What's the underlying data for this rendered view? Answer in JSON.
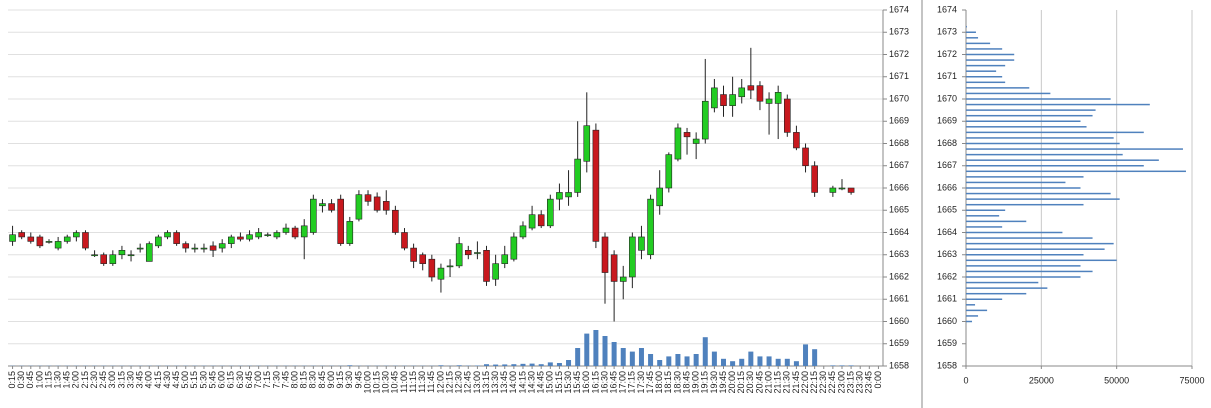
{
  "chart_data": [
    {
      "type": "candlestick",
      "categories": [
        "0:15",
        "0:30",
        "0:45",
        "1:00",
        "1:15",
        "1:30",
        "1:45",
        "2:00",
        "2:15",
        "2:30",
        "2:45",
        "3:00",
        "3:15",
        "3:30",
        "3:45",
        "4:00",
        "4:15",
        "4:30",
        "4:45",
        "5:00",
        "5:15",
        "5:30",
        "5:45",
        "6:00",
        "6:15",
        "6:30",
        "6:45",
        "7:00",
        "7:15",
        "7:30",
        "7:45",
        "8:00",
        "8:15",
        "8:30",
        "8:45",
        "9:00",
        "9:15",
        "9:30",
        "9:45",
        "10:00",
        "10:15",
        "10:30",
        "10:45",
        "11:00",
        "11:15",
        "11:30",
        "11:45",
        "12:00",
        "12:15",
        "12:30",
        "12:45",
        "13:00",
        "13:15",
        "13:30",
        "13:45",
        "14:00",
        "14:15",
        "14:30",
        "14:45",
        "15:00",
        "15:15",
        "15:30",
        "15:45",
        "16:00",
        "16:15",
        "16:30",
        "16:45",
        "17:00",
        "17:15",
        "17:30",
        "17:45",
        "18:00",
        "18:15",
        "18:30",
        "18:45",
        "19:00",
        "19:15",
        "19:30",
        "19:45",
        "20:00",
        "20:15",
        "20:30",
        "20:45",
        "21:00",
        "21:15",
        "21:30",
        "21:45",
        "22:00",
        "22:15",
        "22:30",
        "22:45",
        "23:00",
        "23:15",
        "23:30",
        "23:45",
        "0:00"
      ],
      "open": [
        1663.6,
        1664.0,
        1663.8,
        1663.8,
        1663.6,
        1663.3,
        1663.6,
        1663.8,
        1664.0,
        1663.0,
        1663.0,
        1662.6,
        1663.0,
        1663.0,
        1663.3,
        1662.7,
        1663.4,
        1663.8,
        1664.0,
        1663.5,
        1663.3,
        1663.3,
        1663.4,
        1663.3,
        1663.5,
        1663.8,
        1663.7,
        1663.8,
        1663.9,
        1663.8,
        1664.0,
        1664.2,
        1663.8,
        1664.0,
        1665.2,
        1665.3,
        1665.5,
        1663.5,
        1664.6,
        1665.7,
        1665.6,
        1665.4,
        1665.0,
        1664.0,
        1663.3,
        1663.0,
        1662.8,
        1661.9,
        1662.5,
        1662.5,
        1663.2,
        1663.1,
        1663.2,
        1661.9,
        1662.6,
        1662.8,
        1663.8,
        1664.2,
        1664.8,
        1664.3,
        1665.5,
        1665.6,
        1665.8,
        1667.2,
        1668.6,
        1663.8,
        1663.0,
        1661.8,
        1662.0,
        1663.2,
        1663.0,
        1665.2,
        1666.0,
        1667.3,
        1668.5,
        1668.0,
        1668.2,
        1669.6,
        1670.2,
        1669.7,
        1670.1,
        1670.6,
        1670.6,
        1669.8,
        1669.8,
        1670.0,
        1668.5,
        1667.8,
        1667.0,
        null,
        1665.8,
        1666.0,
        1666.0,
        null,
        null,
        null
      ],
      "high": [
        1664.3,
        1664.1,
        1664.0,
        1663.9,
        1663.7,
        1663.8,
        1663.9,
        1664.1,
        1664.1,
        1663.2,
        1663.1,
        1663.2,
        1663.4,
        1663.2,
        1663.5,
        1663.6,
        1663.9,
        1664.1,
        1664.1,
        1663.6,
        1663.5,
        1663.5,
        1663.6,
        1663.7,
        1663.9,
        1664.0,
        1664.1,
        1664.2,
        1664.0,
        1664.1,
        1664.4,
        1664.3,
        1664.6,
        1665.7,
        1665.5,
        1665.5,
        1665.7,
        1664.7,
        1665.9,
        1665.9,
        1665.8,
        1665.9,
        1665.2,
        1664.2,
        1663.5,
        1663.1,
        1663.0,
        1662.6,
        1662.8,
        1663.8,
        1663.4,
        1663.6,
        1663.4,
        1663.0,
        1663.4,
        1664.0,
        1664.5,
        1665.2,
        1665.0,
        1665.7,
        1666.2,
        1666.8,
        1669.0,
        1670.3,
        1668.9,
        1664.0,
        1663.2,
        1662.5,
        1664.0,
        1664.3,
        1665.7,
        1666.8,
        1667.6,
        1668.9,
        1668.7,
        1668.5,
        1671.8,
        1670.9,
        1670.6,
        1671.0,
        1670.9,
        1672.3,
        1670.8,
        1670.3,
        1670.6,
        1670.2,
        1668.8,
        1668.0,
        1667.2,
        null,
        1666.1,
        1666.4,
        1666.0,
        null,
        null,
        null
      ],
      "low": [
        1663.4,
        1663.7,
        1663.5,
        1663.3,
        1663.5,
        1663.2,
        1663.5,
        1663.6,
        1663.2,
        1662.9,
        1662.5,
        1662.5,
        1662.8,
        1662.7,
        1663.1,
        1662.7,
        1663.3,
        1663.7,
        1663.4,
        1663.1,
        1663.1,
        1663.1,
        1662.9,
        1663.1,
        1663.3,
        1663.6,
        1663.6,
        1663.7,
        1663.8,
        1663.7,
        1663.9,
        1663.7,
        1662.8,
        1663.9,
        1664.9,
        1664.9,
        1663.4,
        1663.4,
        1664.5,
        1665.2,
        1664.9,
        1664.8,
        1663.9,
        1663.2,
        1662.4,
        1662.3,
        1661.8,
        1661.3,
        1662.0,
        1662.4,
        1662.8,
        1662.8,
        1661.6,
        1661.6,
        1662.4,
        1662.7,
        1663.7,
        1664.1,
        1664.2,
        1664.2,
        1665.0,
        1665.2,
        1665.6,
        1666.7,
        1663.3,
        1660.8,
        1660.0,
        1661.0,
        1661.5,
        1662.8,
        1662.8,
        1664.8,
        1665.8,
        1667.2,
        1667.5,
        1667.3,
        1668.0,
        1669.4,
        1669.2,
        1669.2,
        1669.8,
        1670.0,
        1669.5,
        1668.4,
        1668.2,
        1668.3,
        1667.7,
        1666.7,
        1665.6,
        null,
        1665.6,
        1665.9,
        1665.7,
        null,
        null,
        null
      ],
      "close": [
        1663.9,
        1663.8,
        1663.6,
        1663.4,
        1663.6,
        1663.6,
        1663.8,
        1664.0,
        1663.3,
        1663.0,
        1662.6,
        1663.0,
        1663.2,
        1663.0,
        1663.3,
        1663.5,
        1663.8,
        1664.0,
        1663.5,
        1663.3,
        1663.3,
        1663.3,
        1663.2,
        1663.5,
        1663.8,
        1663.7,
        1663.9,
        1664.0,
        1663.9,
        1664.0,
        1664.2,
        1663.8,
        1664.3,
        1665.5,
        1665.3,
        1665.0,
        1663.5,
        1664.5,
        1665.7,
        1665.4,
        1665.0,
        1665.0,
        1664.0,
        1663.3,
        1662.7,
        1662.6,
        1662.0,
        1662.4,
        1662.5,
        1663.5,
        1663.0,
        1663.1,
        1661.8,
        1662.6,
        1663.0,
        1663.8,
        1664.3,
        1664.8,
        1664.3,
        1665.5,
        1665.8,
        1665.8,
        1667.3,
        1668.8,
        1663.6,
        1662.2,
        1661.8,
        1662.0,
        1663.8,
        1663.8,
        1665.5,
        1666.0,
        1667.5,
        1668.7,
        1668.3,
        1668.2,
        1669.9,
        1670.5,
        1669.7,
        1670.2,
        1670.5,
        1670.4,
        1669.9,
        1670.0,
        1670.3,
        1668.5,
        1667.8,
        1667.0,
        1665.8,
        null,
        1666.0,
        1666.0,
        1665.8,
        null,
        null,
        null
      ],
      "volume": [
        200,
        200,
        200,
        200,
        200,
        200,
        200,
        200,
        200,
        200,
        200,
        200,
        200,
        200,
        200,
        200,
        200,
        200,
        200,
        200,
        200,
        200,
        200,
        200,
        200,
        200,
        200,
        200,
        200,
        200,
        200,
        200,
        200,
        200,
        200,
        200,
        200,
        600,
        200,
        200,
        200,
        200,
        200,
        200,
        200,
        200,
        200,
        600,
        200,
        600,
        300,
        400,
        1500,
        1200,
        1300,
        1500,
        1800,
        2000,
        1500,
        3000,
        2500,
        5000,
        15000,
        27000,
        30000,
        25000,
        20000,
        15000,
        12000,
        15000,
        10000,
        5000,
        8000,
        10000,
        8000,
        10000,
        24000,
        12000,
        6000,
        4000,
        6000,
        12000,
        8000,
        8000,
        6000,
        6000,
        4000,
        18000,
        14000,
        null,
        500,
        500,
        500,
        null,
        null,
        null
      ],
      "up_color": "#22cc22",
      "down_color": "#c8181e",
      "volume_color": "#4f81bd",
      "ylim": [
        1658,
        1674
      ],
      "yticks": [
        1658,
        1659,
        1660,
        1661,
        1662,
        1663,
        1664,
        1665,
        1666,
        1667,
        1668,
        1669,
        1670,
        1671,
        1672,
        1673,
        1674
      ],
      "grid": true
    },
    {
      "type": "hbar",
      "y": [
        1673.25,
        1673,
        1672.75,
        1672.5,
        1672.25,
        1672,
        1671.75,
        1671.5,
        1671.25,
        1671,
        1670.75,
        1670.5,
        1670.25,
        1670,
        1669.75,
        1669.5,
        1669.25,
        1669,
        1668.75,
        1668.5,
        1668.25,
        1668,
        1667.75,
        1667.5,
        1667.25,
        1667,
        1666.75,
        1666.5,
        1666.25,
        1666,
        1665.75,
        1665.5,
        1665.25,
        1665,
        1664.75,
        1664.5,
        1664.25,
        1664,
        1663.75,
        1663.5,
        1663.25,
        1663,
        1662.75,
        1662.5,
        1662.25,
        1662,
        1661.75,
        1661.5,
        1661.25,
        1661,
        1660.75,
        1660.5,
        1660.25,
        1660
      ],
      "values": [
        300,
        3300,
        4000,
        8000,
        12000,
        16000,
        16000,
        13000,
        10000,
        12000,
        13000,
        21000,
        28000,
        48000,
        61000,
        43000,
        42000,
        38000,
        40000,
        59000,
        49000,
        51000,
        72000,
        52000,
        64000,
        59000,
        73000,
        39000,
        33000,
        38000,
        48000,
        51000,
        39000,
        13000,
        11000,
        20000,
        12000,
        32000,
        42000,
        49000,
        46000,
        39000,
        50000,
        38000,
        42000,
        38000,
        24000,
        27000,
        20000,
        12000,
        3000,
        7000,
        4000,
        2000
      ],
      "color": "#4f81bd",
      "xlim": [
        0,
        75000
      ],
      "xticks": [
        0,
        25000,
        50000,
        75000
      ],
      "ylim": [
        1658,
        1674
      ],
      "yticks": [
        1658,
        1659,
        1660,
        1661,
        1662,
        1663,
        1664,
        1665,
        1666,
        1667,
        1668,
        1669,
        1670,
        1671,
        1672,
        1673,
        1674
      ],
      "grid": true
    }
  ]
}
